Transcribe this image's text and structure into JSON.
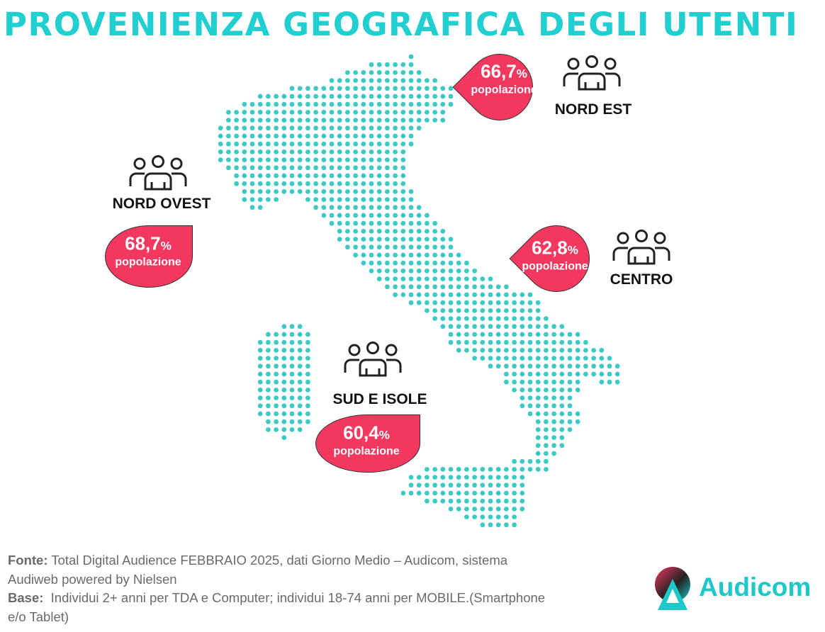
{
  "header": {
    "title": "PROVENIENZA GEOGRAFICA DEGLI UTENTI"
  },
  "regions": [
    {
      "name": "NORD EST",
      "value": "66,7",
      "unit": "%",
      "label": "popolazione"
    },
    {
      "name": "NORD OVEST",
      "value": "68,7",
      "unit": "%",
      "label": "popolazione"
    },
    {
      "name": "CENTRO",
      "value": "62,8",
      "unit": "%",
      "label": "popolazione"
    },
    {
      "name": "SUD E ISOLE",
      "value": "60,4",
      "unit": "%",
      "label": "popolazione"
    }
  ],
  "footer": {
    "source_label": "Fonte:",
    "source_text": "Total Digital Audience FEBBRAIO 2025, dati Giorno Medio – Audicom, sistema Audiweb powered by Nielsen",
    "base_label": "Base:",
    "base_text": "Individui 2+ anni per TDA e Computer; individui 18-74 anni per MOBILE.(Smartphone e/o Tablet)"
  },
  "logo": {
    "text": "Audicom"
  }
}
